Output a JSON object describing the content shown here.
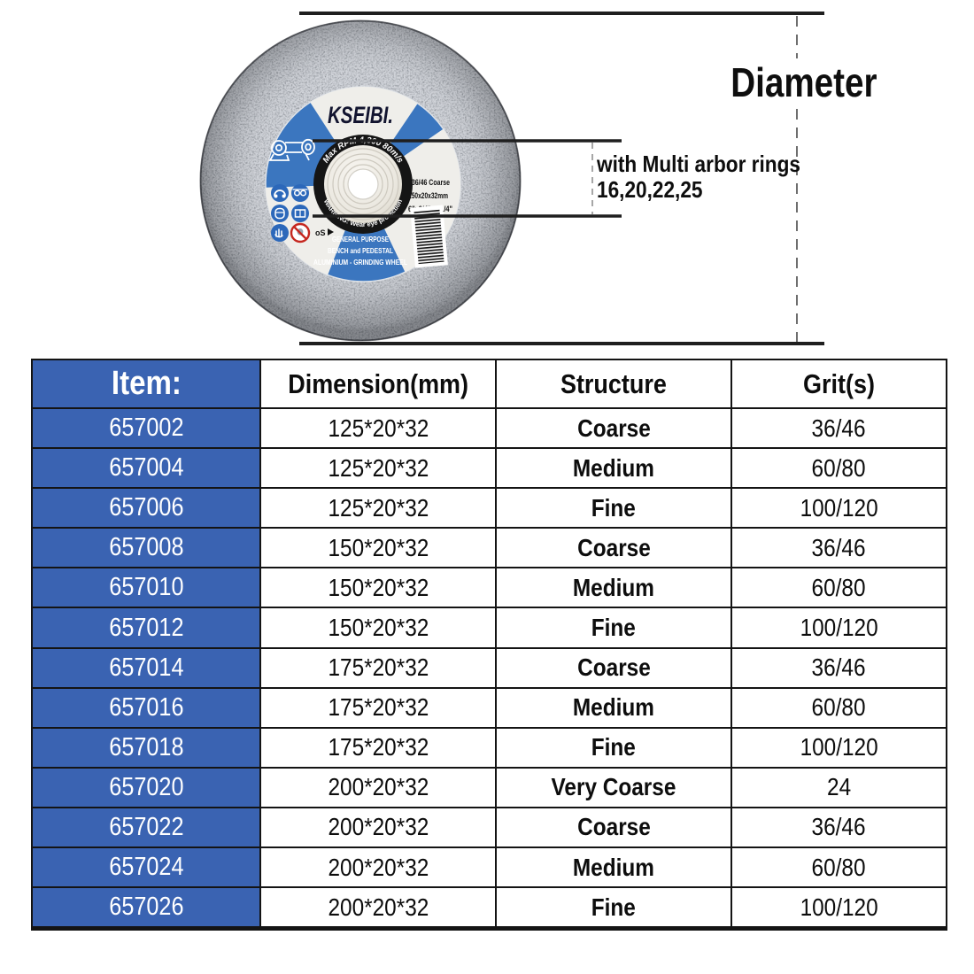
{
  "figure": {
    "diameter_label": "Diameter",
    "arbor_note": {
      "line1": "with Multi arbor rings",
      "line2": "16,20,22,25"
    },
    "wheel_label": {
      "brand": "KSEIBI.",
      "rim_top_text": "Max RPM 4,300 80m/s",
      "rim_bottom_text": "WARNING: Wear eye protection",
      "spec_lines": [
        "#36/46 Coarse",
        "150x20x32mm",
        "6\"x3/4\"x1-1/4\""
      ],
      "purpose_lines": [
        "GENERAL PURPOSE",
        "BENCH and PEDESTAL",
        "ALUMINIUM - GRINDING WHEEL"
      ],
      "cert_mark": "oS",
      "icon_names": [
        "ear-protection-icon",
        "goggles-icon",
        "face-shield-icon",
        "manual-icon",
        "gloves-icon",
        "no-wet-grinding-icon"
      ]
    },
    "colors": {
      "label_blue": "#3b76bf",
      "disc_gray": "#7d838b",
      "table_blue": "#3a63b2"
    }
  },
  "table": {
    "headers": [
      "Item:",
      "Dimension(mm)",
      "Structure",
      "Grit(s)"
    ],
    "rows": [
      {
        "item": "657002",
        "dimension": "125*20*32",
        "structure": "Coarse",
        "grit": "36/46"
      },
      {
        "item": "657004",
        "dimension": "125*20*32",
        "structure": "Medium",
        "grit": "60/80"
      },
      {
        "item": "657006",
        "dimension": "125*20*32",
        "structure": "Fine",
        "grit": "100/120"
      },
      {
        "item": "657008",
        "dimension": "150*20*32",
        "structure": "Coarse",
        "grit": "36/46"
      },
      {
        "item": "657010",
        "dimension": "150*20*32",
        "structure": "Medium",
        "grit": "60/80"
      },
      {
        "item": "657012",
        "dimension": "150*20*32",
        "structure": "Fine",
        "grit": "100/120"
      },
      {
        "item": "657014",
        "dimension": "175*20*32",
        "structure": "Coarse",
        "grit": "36/46"
      },
      {
        "item": "657016",
        "dimension": "175*20*32",
        "structure": "Medium",
        "grit": "60/80"
      },
      {
        "item": "657018",
        "dimension": "175*20*32",
        "structure": "Fine",
        "grit": "100/120"
      },
      {
        "item": "657020",
        "dimension": "200*20*32",
        "structure": "Very Coarse",
        "grit": "24"
      },
      {
        "item": "657022",
        "dimension": "200*20*32",
        "structure": "Coarse",
        "grit": "36/46"
      },
      {
        "item": "657024",
        "dimension": "200*20*32",
        "structure": "Medium",
        "grit": "60/80"
      },
      {
        "item": "657026",
        "dimension": "200*20*32",
        "structure": "Fine",
        "grit": "100/120"
      }
    ]
  }
}
